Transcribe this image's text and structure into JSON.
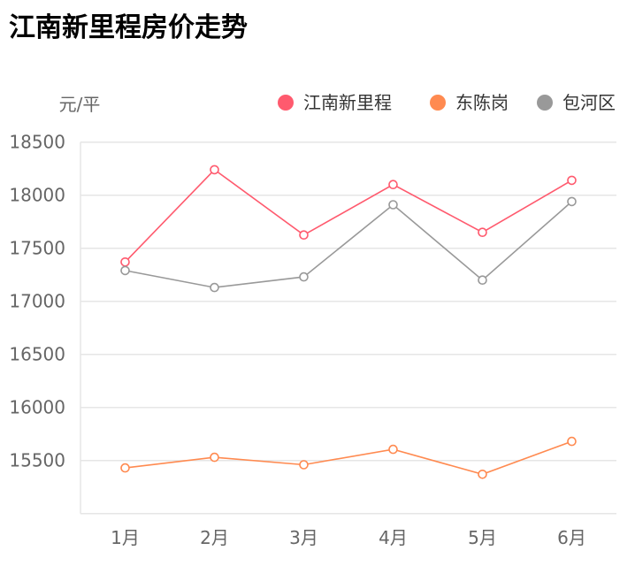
{
  "title": "江南新里程房价走势",
  "chart_data": {
    "type": "line",
    "title": "江南新里程房价走势",
    "ylabel": "元/平",
    "xlabel": "",
    "categories": [
      "1月",
      "2月",
      "3月",
      "4月",
      "5月",
      "6月"
    ],
    "ylim": [
      15000,
      18500
    ],
    "yticks": [
      15500,
      16000,
      16500,
      17000,
      17500,
      18000,
      18500
    ],
    "grid": true,
    "legend_position": "top-right",
    "series": [
      {
        "name": "江南新里程",
        "color": "#ff5a6e",
        "values": [
          17370,
          18240,
          17625,
          18100,
          17650,
          18140
        ]
      },
      {
        "name": "东陈岗",
        "color": "#ff8a50",
        "values": [
          15430,
          15530,
          15460,
          15605,
          15370,
          15680
        ]
      },
      {
        "name": "包河区",
        "color": "#999999",
        "values": [
          17290,
          17130,
          17230,
          17910,
          17200,
          17940
        ]
      }
    ]
  }
}
